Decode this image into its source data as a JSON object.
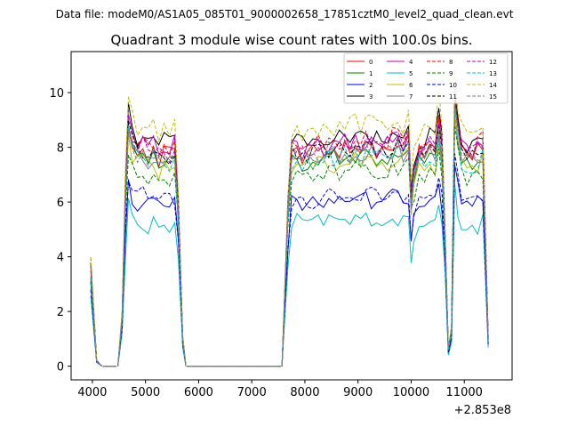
{
  "figure": {
    "suptitle": "Data file: modeM0/AS1A05_085T01_9000002658_17851cztM0_level2_quad_clean.evt",
    "title": "Quadrant 3 module wise count rates with 100.0s bins.",
    "x_offset_label": "+2.853e8"
  },
  "chart_data": {
    "type": "line",
    "title": "Quadrant 3 module wise count rates with 100.0s bins.",
    "xlabel": "",
    "ylabel": "",
    "xlim": [
      3600,
      11900
    ],
    "ylim": [
      -0.5,
      11.5
    ],
    "x_offset": 285300000,
    "xticks": [
      4000,
      5000,
      6000,
      7000,
      8000,
      9000,
      10000,
      11000
    ],
    "xtick_labels": [
      "4000",
      "5000",
      "6000",
      "7000",
      "8000",
      "9000",
      "10000",
      "11000"
    ],
    "yticks": [
      0,
      2,
      4,
      6,
      8,
      10
    ],
    "ytick_labels": [
      "0",
      "2",
      "4",
      "6",
      "8",
      "10"
    ],
    "grid": false,
    "legend": "top-right, 4 columns",
    "gaps": [
      [
        4200,
        4450
      ],
      [
        5780,
        7550
      ]
    ],
    "active_segments": [
      {
        "x": [
          3970,
          4080,
          4180
        ],
        "base": [
          3.5,
          0.2,
          0.0
        ]
      },
      {
        "x": [
          4480,
          4560,
          4620,
          4680,
          4750,
          4850,
          4950,
          5050,
          5150,
          5250,
          5350,
          5450,
          5550,
          5620,
          5700,
          5760
        ],
        "base": [
          0.0,
          1.8,
          6.0,
          8.6,
          8.0,
          7.7,
          7.8,
          7.5,
          7.7,
          7.4,
          7.6,
          7.5,
          7.7,
          5.5,
          1.0,
          0.0
        ]
      },
      {
        "x": [
          7570,
          7620,
          7680,
          7750,
          7850,
          7950,
          8050,
          8150,
          8250,
          8350,
          8450,
          8550,
          8650,
          8750,
          8850,
          8950,
          9050,
          9150,
          9250,
          9350,
          9450,
          9550,
          9650,
          9750,
          9850,
          9950,
          10000,
          10050,
          10150,
          10250,
          10350,
          10450,
          10520,
          10580,
          10640,
          10700,
          10760,
          10820,
          10880,
          10950,
          11050,
          11150,
          11250,
          11350,
          11450
        ],
        "base": [
          0.0,
          2.5,
          5.5,
          7.6,
          7.7,
          7.5,
          7.6,
          7.6,
          7.7,
          7.6,
          7.8,
          7.7,
          7.7,
          7.8,
          7.7,
          7.8,
          7.7,
          7.9,
          7.8,
          7.7,
          7.8,
          7.8,
          7.9,
          7.9,
          7.7,
          8.0,
          6.0,
          6.8,
          7.6,
          7.6,
          7.9,
          7.6,
          8.7,
          7.6,
          4.5,
          0.6,
          1.3,
          9.6,
          8.4,
          7.6,
          7.5,
          7.4,
          7.6,
          7.8,
          1.0
        ]
      }
    ],
    "series": [
      {
        "name": "0",
        "color": "#ff0000",
        "style": "solid",
        "scale": 1.03
      },
      {
        "name": "1",
        "color": "#008000",
        "style": "solid",
        "scale": 0.98
      },
      {
        "name": "2",
        "color": "#0000ff",
        "style": "solid",
        "scale": 0.78
      },
      {
        "name": "3",
        "color": "#000000",
        "style": "solid",
        "scale": 1.08
      },
      {
        "name": "4",
        "color": "#bf00bf",
        "style": "solid",
        "scale": 1.05
      },
      {
        "name": "5",
        "color": "#00bfbf",
        "style": "solid",
        "scale": 0.68
      },
      {
        "name": "6",
        "color": "#bfbf00",
        "style": "solid",
        "scale": 0.96
      },
      {
        "name": "7",
        "color": "#808080",
        "style": "solid",
        "scale": 1.0
      },
      {
        "name": "8",
        "color": "#ff0000",
        "style": "dashed",
        "scale": 1.06
      },
      {
        "name": "9",
        "color": "#008000",
        "style": "dashed",
        "scale": 0.92
      },
      {
        "name": "10",
        "color": "#0000ff",
        "style": "dashed",
        "scale": 0.8
      },
      {
        "name": "11",
        "color": "#000000",
        "style": "dashed",
        "scale": 1.02
      },
      {
        "name": "12",
        "color": "#bf00bf",
        "style": "dashed",
        "scale": 1.04
      },
      {
        "name": "13",
        "color": "#00bfbf",
        "style": "dashed",
        "scale": 0.99
      },
      {
        "name": "14",
        "color": "#bfbf00",
        "style": "dashed",
        "scale": 1.14
      },
      {
        "name": "15",
        "color": "#808080",
        "style": "dashed",
        "scale": 1.01
      }
    ]
  }
}
